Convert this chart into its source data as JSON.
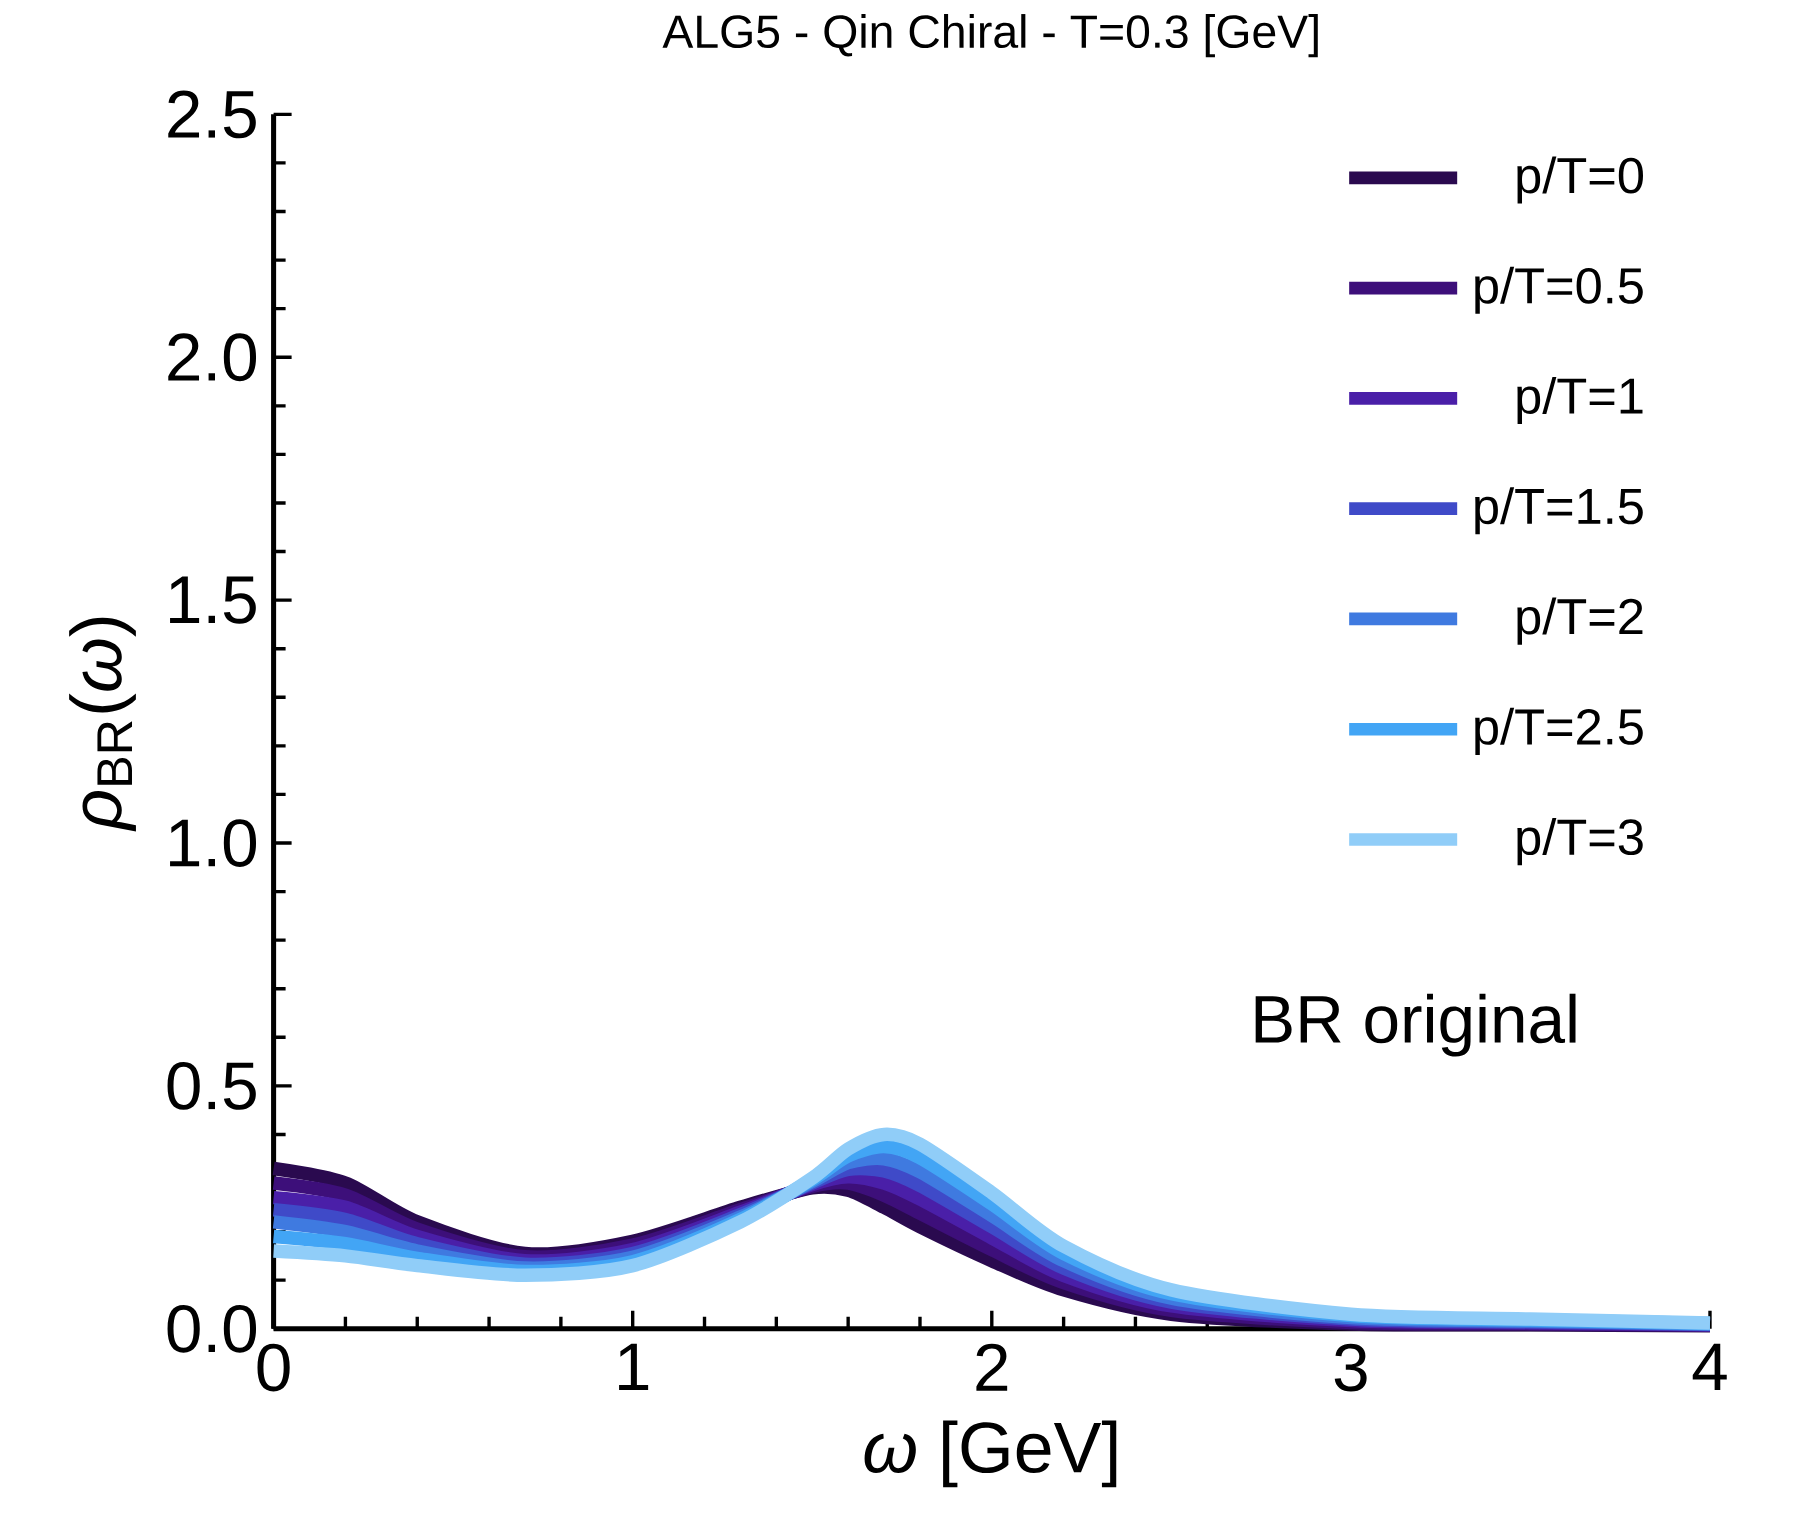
{
  "chart_data": {
    "type": "line",
    "title": "ALG5 - Qin Chiral - T=0.3 [GeV]",
    "xlabel": "*ω* [GeV]",
    "ylabel": "*ρ*$_{BR}$(*ω*)",
    "annotations": [
      "BR original"
    ],
    "x": [
      0,
      0.2,
      0.4,
      0.7,
      1.0,
      1.3,
      1.5,
      1.6,
      1.7,
      1.8,
      2.0,
      2.2,
      2.5,
      3,
      3.5,
      4
    ],
    "series": [
      {
        "name": "p/T=0",
        "color": "#2a0a4f",
        "values": [
          0.33,
          0.3,
          0.22,
          0.155,
          0.18,
          0.25,
          0.29,
          0.285,
          0.25,
          0.21,
          0.14,
          0.08,
          0.03,
          0.01,
          0.008,
          0.006
        ]
      },
      {
        "name": "p/T=0.5",
        "color": "#3d0f7a",
        "values": [
          0.3,
          0.275,
          0.205,
          0.148,
          0.172,
          0.245,
          0.293,
          0.3,
          0.275,
          0.238,
          0.163,
          0.095,
          0.038,
          0.013,
          0.01,
          0.007
        ]
      },
      {
        "name": "p/T=1",
        "color": "#4a1fa8",
        "values": [
          0.27,
          0.25,
          0.19,
          0.14,
          0.163,
          0.24,
          0.297,
          0.313,
          0.3,
          0.267,
          0.187,
          0.11,
          0.047,
          0.017,
          0.012,
          0.008
        ]
      },
      {
        "name": "p/T=1.5",
        "color": "#3f4ac8",
        "values": [
          0.245,
          0.225,
          0.175,
          0.133,
          0.155,
          0.235,
          0.3,
          0.328,
          0.325,
          0.295,
          0.21,
          0.125,
          0.055,
          0.02,
          0.014,
          0.009
        ]
      },
      {
        "name": "p/T=2",
        "color": "#3f7ae0",
        "values": [
          0.22,
          0.2,
          0.16,
          0.125,
          0.147,
          0.23,
          0.303,
          0.342,
          0.35,
          0.323,
          0.233,
          0.14,
          0.063,
          0.023,
          0.016,
          0.01
        ]
      },
      {
        "name": "p/T=2.5",
        "color": "#42a5f5",
        "values": [
          0.19,
          0.175,
          0.145,
          0.118,
          0.138,
          0.225,
          0.307,
          0.356,
          0.375,
          0.352,
          0.257,
          0.155,
          0.072,
          0.027,
          0.018,
          0.011
        ]
      },
      {
        "name": "p/T=3",
        "color": "#90cdf8",
        "values": [
          0.16,
          0.15,
          0.13,
          0.11,
          0.13,
          0.22,
          0.31,
          0.37,
          0.4,
          0.38,
          0.28,
          0.17,
          0.08,
          0.03,
          0.02,
          0.012
        ]
      }
    ],
    "xlim": [
      0,
      4
    ],
    "ylim": [
      0,
      2.5
    ],
    "xticks": [
      0,
      1,
      2,
      3,
      4
    ],
    "yticks": [
      {
        "value": 0,
        "label": "0.0"
      },
      {
        "value": 0.5,
        "label": "0.5"
      },
      {
        "value": 1,
        "label": "1.0"
      },
      {
        "value": 1.5,
        "label": "1.5"
      },
      {
        "value": 2,
        "label": "2.0"
      },
      {
        "value": 2.5,
        "label": "2.5"
      }
    ],
    "legend": "top right",
    "line_style": "solid",
    "grid": false
  }
}
